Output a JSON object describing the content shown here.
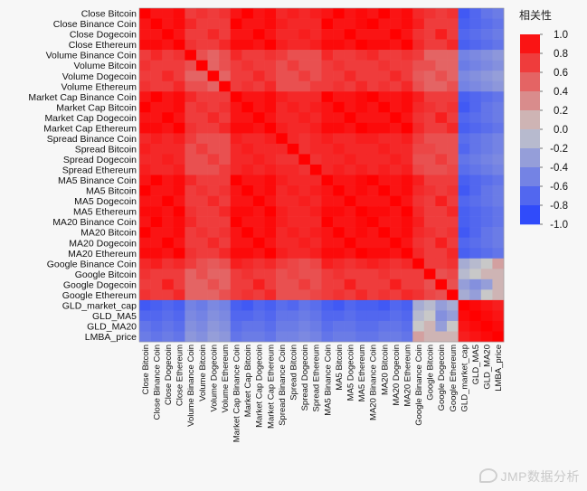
{
  "chart_data": {
    "type": "heatmap",
    "labels": [
      "Close Bitcoin",
      "Close Binance Coin",
      "Close Dogecoin",
      "Close Ethereum",
      "Volume Binance Coin",
      "Volume Bitcoin",
      "Volume Dogecoin",
      "Volume Ethereum",
      "Market Cap Binance Coin",
      "Market Cap Bitcoin",
      "Market Cap Dogecoin",
      "Market Cap Ethereum",
      "Spread Binance Coin",
      "Spread Bitcoin",
      "Spread Dogecoin",
      "Spread Ethereum",
      "MA5 Binance Coin",
      "MA5 Bitcoin",
      "MA5 Dogecoin",
      "MA5 Ethereum",
      "MA20 Binance Coin",
      "MA20 Bitcoin",
      "MA20 Dogecoin",
      "MA20 Ethereum",
      "Google Binance Coin",
      "Google Bitcoin",
      "Google Dogecoin",
      "Google Ethereum",
      "GLD_market_cap",
      "GLD_MA5",
      "GLD_MA20",
      "LMBA_price"
    ],
    "x_labels": [
      "Close Bitcoin",
      "Close Binance Coin",
      "Close Dogecoin",
      "Close Ethereum",
      "Volume Binance Coin",
      "Volume Bitcoin",
      "Volume Dogecoin",
      "Volume Ethereum",
      "Market Cap Binance Coin",
      "Market Cap Bitcoin",
      "Market Cap Dogecoin",
      "Market Cap Ethereum",
      "Spread Binance Coin",
      "Spread Bitcoin",
      "Spread Dogecoin",
      "Spread Ethereum",
      "MA5 Binance Coin",
      "MA5 Bitcoin",
      "MA5 Dogecoin",
      "MA5 Ethereum",
      "MA20 Binance Coin",
      "MA20 Bitcoin",
      "MA20 Dogecoin",
      "MA20 Ethereum",
      "Google Binance Coin",
      "Google Bitcoin",
      "Google Dogecoin",
      "Google Ethereum",
      "GLD_market_cap",
      "GLD_MA5",
      "GLD_MA20",
      "LMBA_price"
    ],
    "legend": {
      "title": "相关性",
      "ticks": [
        "1.0",
        "0.8",
        "0.6",
        "0.4",
        "0.2",
        "0.0",
        "-0.2",
        "-0.4",
        "-0.6",
        "-0.8",
        "-1.0"
      ],
      "range": [
        -1,
        1
      ]
    },
    "colors": {
      "positive": "#ff0000",
      "neutral": "#c8c8c8",
      "negative": "#1f3dff"
    },
    "matrix_rows": [
      "1.0 0.9 0.9 0.95 0.7 0.75 0.7 0.75 0.9 1.0 0.9 0.95 0.8 0.85 0.8 0.85 0.9 1.0 0.9 0.95 0.9 1.0 0.9 0.95 0.8 0.75 0.7 0.75 -0.8 -0.7 -0.6 -0.55",
      "0.9 1.0 0.9 0.95 0.8 0.7 0.7 0.7 1.0 0.9 0.9 0.95 0.85 0.8 0.8 0.8 1.0 0.9 0.9 0.95 1.0 0.9 0.9 0.95 0.85 0.7 0.7 0.7 -0.75 -0.7 -0.65 -0.6",
      "0.9 0.9 1.0 0.9 0.7 0.7 0.8 0.7 0.9 0.9 1.0 0.9 0.8 0.8 0.85 0.8 0.9 0.9 1.0 0.9 0.9 0.9 1.0 0.9 0.75 0.7 0.85 0.7 -0.7 -0.65 -0.6 -0.55",
      "0.95 0.95 0.9 1.0 0.75 0.7 0.7 0.8 0.95 0.95 0.9 1.0 0.85 0.8 0.8 0.85 0.95 0.95 0.9 1.0 0.95 0.95 0.9 1.0 0.8 0.7 0.7 0.8 -0.75 -0.7 -0.65 -0.6",
      "0.7 0.8 0.7 0.75 1.0 0.6 0.5 0.6 0.8 0.7 0.7 0.75 0.7 0.6 0.6 0.6 0.8 0.7 0.7 0.75 0.8 0.7 0.7 0.75 0.7 0.5 0.5 0.5 -0.5 -0.45 -0.4 -0.35",
      "0.75 0.7 0.7 0.7 0.6 1.0 0.5 0.6 0.7 0.75 0.7 0.7 0.6 0.7 0.6 0.6 0.7 0.75 0.7 0.7 0.7 0.75 0.7 0.7 0.6 0.6 0.5 0.5 -0.55 -0.5 -0.45 -0.4",
      "0.7 0.7 0.8 0.7 0.5 0.5 1.0 0.5 0.7 0.7 0.8 0.7 0.6 0.6 0.7 0.6 0.7 0.7 0.8 0.7 0.7 0.7 0.8 0.7 0.55 0.5 0.6 0.5 -0.45 -0.4 -0.35 -0.3",
      "0.75 0.7 0.7 0.8 0.6 0.6 0.5 1.0 0.7 0.75 0.7 0.8 0.6 0.6 0.6 0.7 0.7 0.75 0.7 0.8 0.7 0.75 0.7 0.8 0.6 0.5 0.5 0.6 -0.5 -0.45 -0.4 -0.35",
      "0.9 1.0 0.9 0.95 0.8 0.7 0.7 0.7 1.0 0.9 0.9 0.95 0.85 0.8 0.8 0.8 1.0 0.9 0.9 0.95 1.0 0.9 0.9 0.95 0.85 0.7 0.7 0.7 -0.75 -0.7 -0.65 -0.6",
      "1.0 0.9 0.9 0.95 0.7 0.75 0.7 0.75 0.9 1.0 0.9 0.95 0.8 0.85 0.8 0.85 0.9 1.0 0.9 0.95 0.9 1.0 0.9 0.95 0.8 0.75 0.7 0.75 -0.8 -0.7 -0.6 -0.55",
      "0.9 0.9 1.0 0.9 0.7 0.7 0.8 0.7 0.9 0.9 1.0 0.9 0.8 0.8 0.85 0.8 0.9 0.9 1.0 0.9 0.9 0.9 1.0 0.9 0.75 0.7 0.85 0.7 -0.7 -0.65 -0.6 -0.55",
      "0.95 0.95 0.9 1.0 0.75 0.7 0.7 0.8 0.95 0.95 0.9 1.0 0.85 0.8 0.8 0.85 0.95 0.95 0.9 1.0 0.95 0.95 0.9 1.0 0.8 0.7 0.7 0.8 -0.75 -0.7 -0.65 -0.6",
      "0.8 0.85 0.8 0.85 0.7 0.6 0.6 0.6 0.85 0.8 0.8 0.85 1.0 0.8 0.75 0.8 0.85 0.8 0.8 0.85 0.85 0.8 0.8 0.85 0.7 0.6 0.6 0.6 -0.65 -0.6 -0.55 -0.5",
      "0.85 0.8 0.8 0.8 0.6 0.7 0.6 0.6 0.8 0.85 0.8 0.8 0.8 1.0 0.75 0.8 0.8 0.85 0.8 0.8 0.8 0.85 0.8 0.8 0.65 0.65 0.6 0.6 -0.7 -0.6 -0.55 -0.5",
      "0.8 0.8 0.85 0.8 0.6 0.6 0.7 0.6 0.8 0.8 0.85 0.8 0.75 0.75 1.0 0.75 0.8 0.8 0.85 0.8 0.8 0.8 0.85 0.8 0.6 0.6 0.7 0.6 -0.6 -0.55 -0.5 -0.45",
      "0.85 0.8 0.8 0.85 0.6 0.6 0.6 0.7 0.8 0.85 0.8 0.85 0.8 0.8 0.75 1.0 0.8 0.85 0.8 0.85 0.8 0.85 0.8 0.85 0.65 0.6 0.6 0.65 -0.65 -0.6 -0.55 -0.5",
      "0.9 1.0 0.9 0.95 0.8 0.7 0.7 0.7 1.0 0.9 0.9 0.95 0.85 0.8 0.8 0.8 1.0 0.9 0.9 0.95 1.0 0.9 0.9 0.95 0.85 0.7 0.7 0.7 -0.75 -0.7 -0.65 -0.6",
      "1.0 0.9 0.9 0.95 0.7 0.75 0.7 0.75 0.9 1.0 0.9 0.95 0.8 0.85 0.8 0.85 0.9 1.0 0.9 0.95 0.9 1.0 0.9 0.95 0.8 0.75 0.7 0.75 -0.8 -0.7 -0.6 -0.55",
      "0.9 0.9 1.0 0.9 0.7 0.7 0.8 0.7 0.9 0.9 1.0 0.9 0.8 0.8 0.85 0.8 0.9 0.9 1.0 0.9 0.9 0.9 1.0 0.9 0.75 0.7 0.85 0.7 -0.7 -0.65 -0.6 -0.55",
      "0.95 0.95 0.9 1.0 0.75 0.7 0.7 0.8 0.95 0.95 0.9 1.0 0.85 0.8 0.8 0.85 0.95 0.95 0.9 1.0 0.95 0.95 0.9 1.0 0.8 0.7 0.7 0.8 -0.75 -0.7 -0.65 -0.6",
      "0.9 1.0 0.9 0.95 0.8 0.7 0.7 0.7 1.0 0.9 0.9 0.95 0.85 0.8 0.8 0.8 1.0 0.9 0.9 0.95 1.0 0.9 0.9 0.95 0.85 0.7 0.7 0.7 -0.75 -0.7 -0.65 -0.6",
      "1.0 0.9 0.9 0.95 0.7 0.75 0.7 0.75 0.9 1.0 0.9 0.95 0.8 0.85 0.8 0.85 0.9 1.0 0.9 0.95 0.9 1.0 0.9 0.95 0.8 0.75 0.7 0.75 -0.8 -0.7 -0.6 -0.55",
      "0.9 0.9 1.0 0.9 0.7 0.7 0.8 0.7 0.9 0.9 1.0 0.9 0.8 0.8 0.85 0.8 0.9 0.9 1.0 0.9 0.9 0.9 1.0 0.9 0.75 0.7 0.85 0.7 -0.7 -0.65 -0.6 -0.55",
      "0.95 0.95 0.9 1.0 0.75 0.7 0.7 0.8 0.95 0.95 0.9 1.0 0.85 0.8 0.8 0.85 0.95 0.95 0.9 1.0 0.95 0.95 0.9 1.0 0.8 0.7 0.7 0.8 -0.75 -0.7 -0.65 -0.6",
      "0.8 0.85 0.75 0.8 0.7 0.6 0.55 0.6 0.85 0.8 0.75 0.8 0.7 0.65 0.6 0.65 0.85 0.8 0.75 0.8 0.85 0.8 0.75 0.8 1.0 0.7 0.7 0.75 -0.2 -0.1 0.0 0.2",
      "0.75 0.7 0.7 0.7 0.5 0.6 0.5 0.5 0.7 0.75 0.7 0.7 0.6 0.65 0.6 0.6 0.7 0.75 0.7 0.7 0.7 0.75 0.7 0.7 0.7 1.0 0.6 0.65 -0.1 0.0 0.1 0.1",
      "0.7 0.7 0.85 0.7 0.5 0.5 0.6 0.5 0.7 0.7 0.85 0.7 0.6 0.6 0.7 0.6 0.7 0.7 0.85 0.7 0.7 0.7 0.85 0.7 0.7 0.6 1.0 0.6 -0.3 -0.4 -0.3 0.1",
      "0.75 0.7 0.7 0.8 0.5 0.5 0.5 0.6 0.7 0.75 0.7 0.8 0.6 0.6 0.6 0.65 0.7 0.75 0.7 0.8 0.7 0.75 0.7 0.8 0.75 0.65 0.6 1.0 -0.2 -0.3 0.0 0.1",
      "-0.8 -0.75 -0.7 -0.75 -0.5 -0.55 -0.45 -0.5 -0.75 -0.8 -0.7 -0.75 -0.65 -0.7 -0.6 -0.65 -0.75 -0.8 -0.7 -0.75 -0.75 -0.8 -0.7 -0.75 -0.2 -0.1 -0.3 -0.2 1.0 0.95 0.9 0.85",
      "-0.7 -0.7 -0.65 -0.7 -0.45 -0.5 -0.4 -0.45 -0.7 -0.7 -0.65 -0.7 -0.6 -0.6 -0.55 -0.6 -0.7 -0.7 -0.65 -0.7 -0.7 -0.7 -0.65 -0.7 -0.1 0.0 -0.4 -0.3 0.95 1.0 0.95 0.9",
      "-0.6 -0.65 -0.6 -0.65 -0.4 -0.45 -0.35 -0.4 -0.65 -0.6 -0.6 -0.65 -0.55 -0.55 -0.5 -0.55 -0.65 -0.6 -0.6 -0.65 -0.65 -0.6 -0.6 -0.65 0.0 0.1 -0.3 0.0 0.9 0.95 1.0 0.95",
      "-0.55 -0.6 -0.55 -0.6 -0.35 -0.4 -0.3 -0.35 -0.6 -0.55 -0.55 -0.6 -0.5 -0.5 -0.45 -0.5 -0.6 -0.55 -0.55 -0.6 -0.6 -0.55 -0.55 -0.6 0.2 0.1 0.1 0.1 0.85 0.9 0.95 1.0"
    ]
  },
  "watermark": {
    "text": "JMP数据分析",
    "icon": "weibo-icon"
  }
}
